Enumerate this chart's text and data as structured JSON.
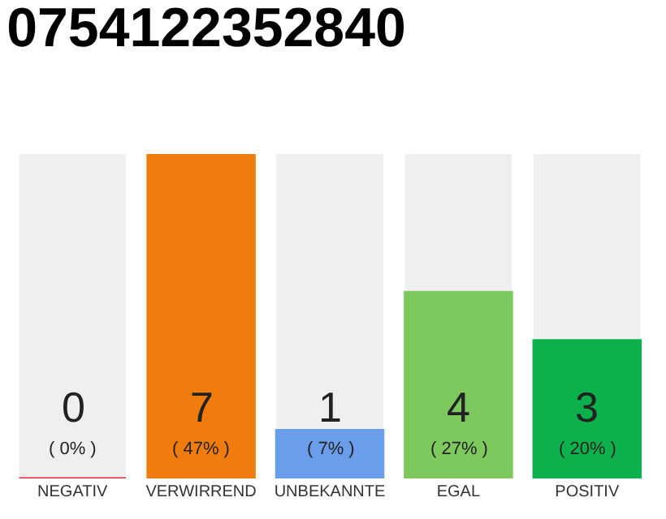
{
  "chart_data": {
    "type": "bar",
    "title": "0754122352840",
    "categories": [
      "NEGATIV",
      "VERWIRREND",
      "UNBEKANNTE",
      "EGAL",
      "POSITIV"
    ],
    "values": [
      0,
      47,
      7,
      27,
      20
    ],
    "colors": [
      "#e0243f",
      "#f07c0d",
      "#6a9eeb",
      "#7dc95e",
      "#0db14b"
    ],
    "value_labels": [
      "0\n( 0% )",
      "7\n( 47% )",
      "1\n( 7% )",
      "4\n( 27% )",
      "3\n( 20% )"
    ],
    "tick_labels": "x",
    "grid": false,
    "legend": false
  }
}
